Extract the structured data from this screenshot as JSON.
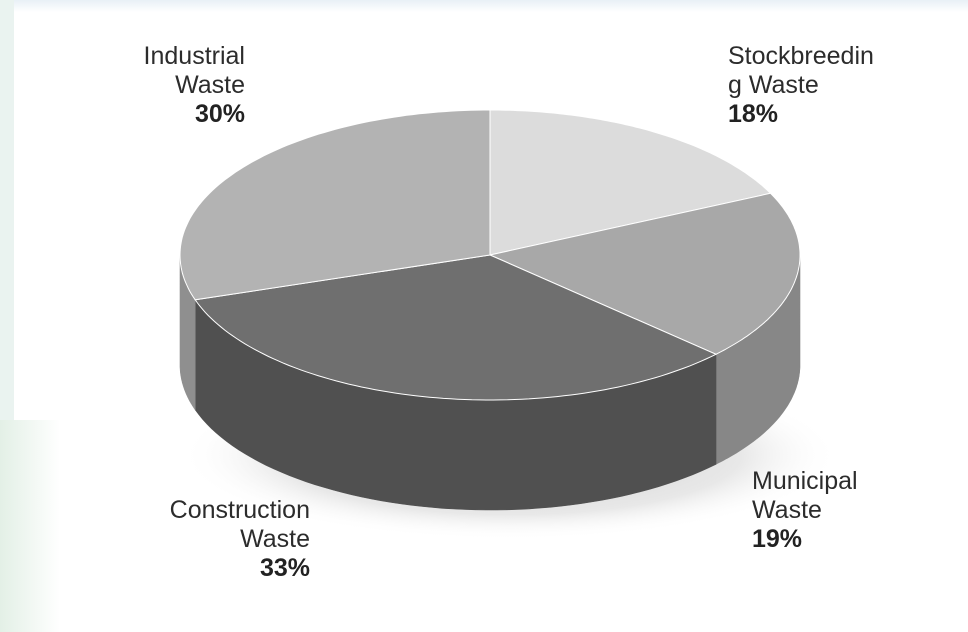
{
  "chart_data": {
    "type": "pie",
    "style": "3d",
    "slices": [
      {
        "label_lines": [
          "Stockbreedin",
          "g Waste"
        ],
        "value": 18,
        "value_label": "18%",
        "color": "#dcdcdc"
      },
      {
        "label_lines": [
          "Municipal",
          "Waste"
        ],
        "value": 19,
        "value_label": "19%",
        "color": "#a8a8a8"
      },
      {
        "label_lines": [
          "Construction",
          "Waste"
        ],
        "value": 33,
        "value_label": "33%",
        "color": "#6f6f6f"
      },
      {
        "label_lines": [
          "Industrial",
          "Waste"
        ],
        "value": 30,
        "value_label": "30%",
        "color": "#b3b3b3"
      }
    ],
    "side_colors": [
      "#c2c2c2",
      "#878787",
      "#505050",
      "#8f8f8f"
    ]
  }
}
